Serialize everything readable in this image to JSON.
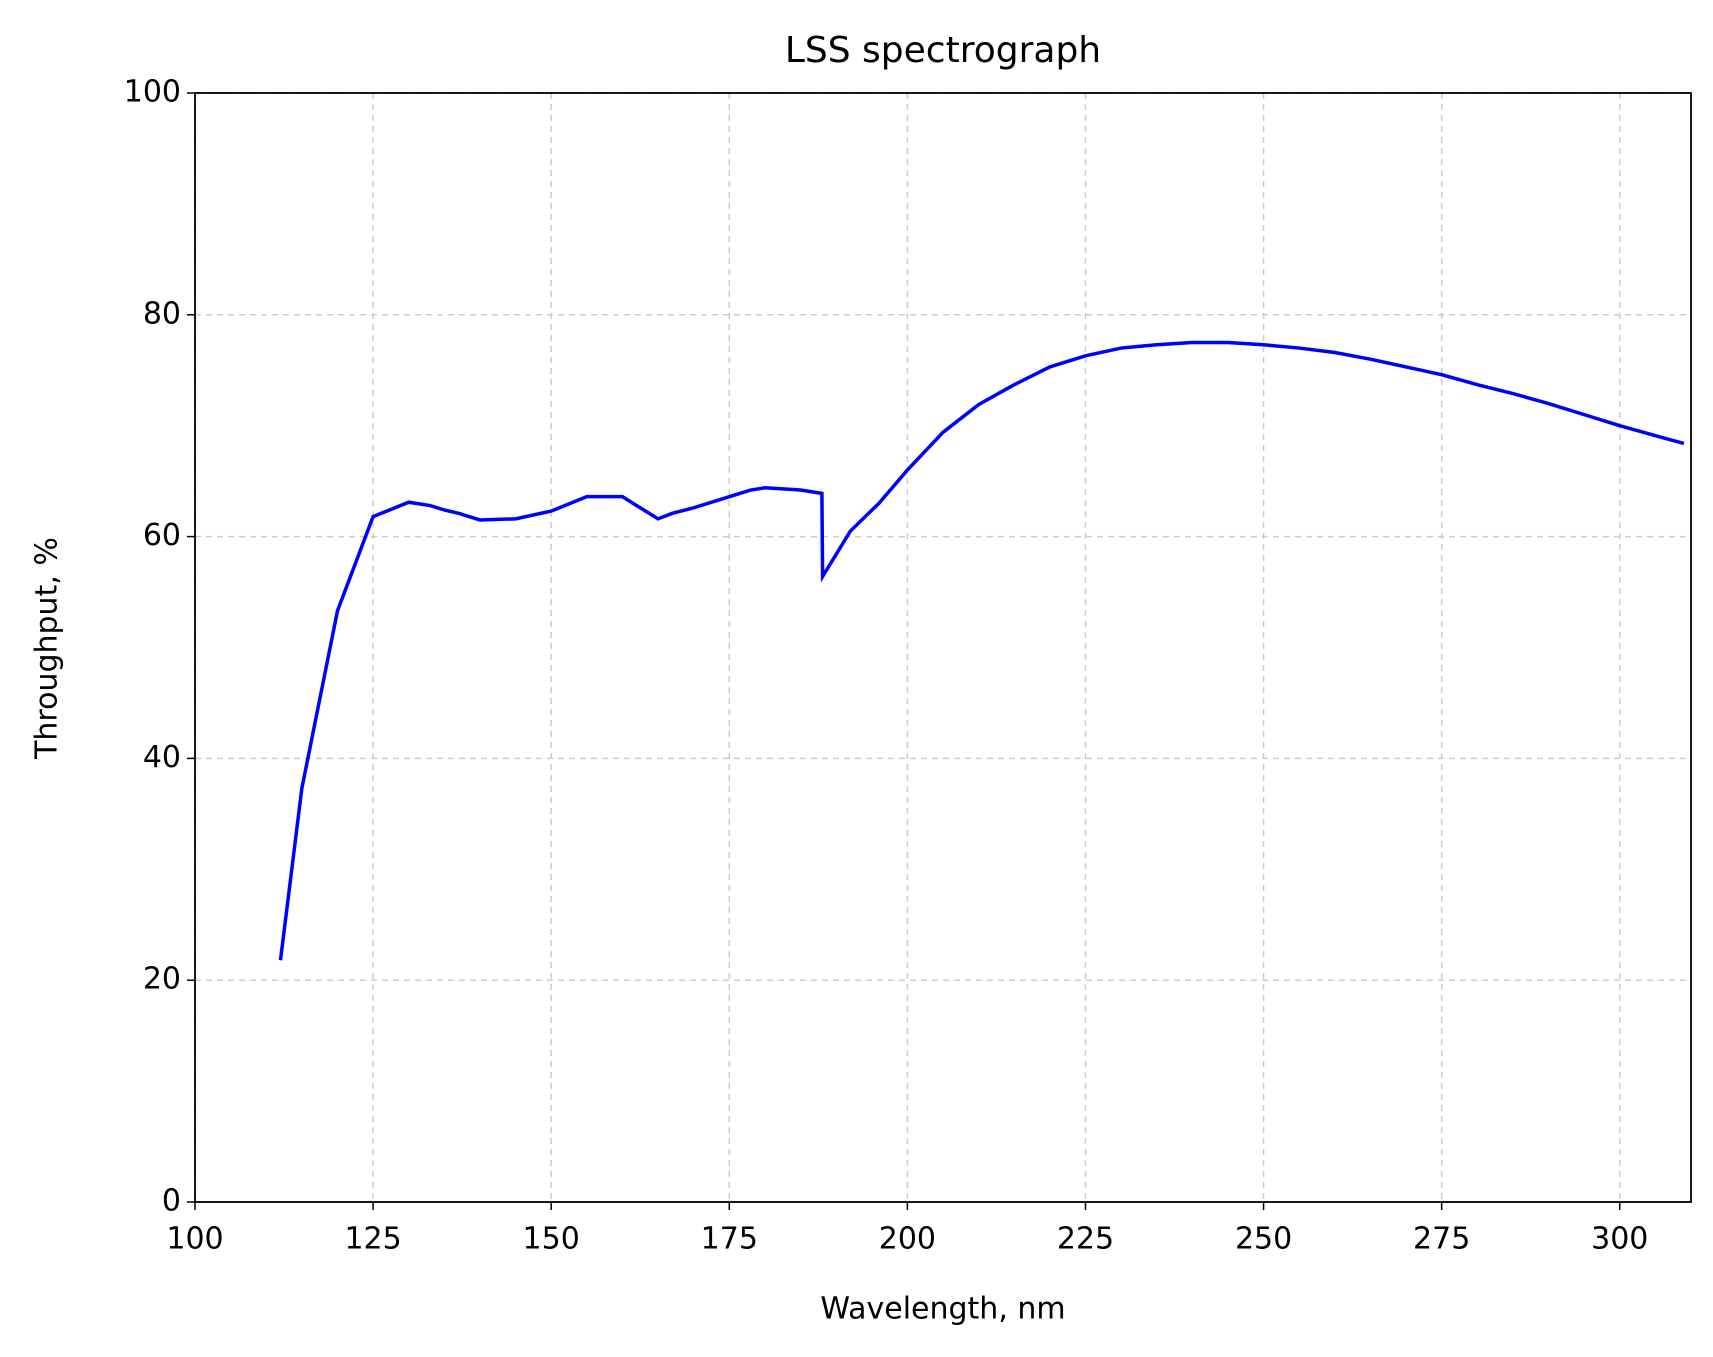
{
  "chart_data": {
    "type": "line",
    "title": "LSS spectrograph",
    "x_label": "Wavelength, nm",
    "y_label": "Throughput, %",
    "x": [
      112,
      115,
      120,
      125,
      130,
      133,
      135,
      137,
      140,
      145,
      150,
      155,
      160,
      165,
      167,
      170,
      175,
      178,
      180,
      185,
      188,
      188.1,
      192,
      196,
      200,
      205,
      210,
      215,
      220,
      225,
      230,
      235,
      240,
      245,
      250,
      255,
      260,
      265,
      270,
      275,
      280,
      285,
      290,
      295,
      300,
      305,
      309
    ],
    "series": [
      {
        "color": "#0000ff",
        "values": [
          21.8,
          37.3,
          53.3,
          61.8,
          63.1,
          62.8,
          62.4,
          62.1,
          61.5,
          61.6,
          62.3,
          63.6,
          63.6,
          61.6,
          62.1,
          62.6,
          63.6,
          64.2,
          64.4,
          64.2,
          63.9,
          56.4,
          60.5,
          63.0,
          66.0,
          69.4,
          71.9,
          73.7,
          75.3,
          76.3,
          77.0,
          77.3,
          77.5,
          77.5,
          77.3,
          77.0,
          76.6,
          76.0,
          75.3,
          74.6,
          73.7,
          72.9,
          72.0,
          71.0,
          70.0,
          69.1,
          68.4
        ]
      }
    ],
    "xlim": [
      100,
      310
    ],
    "ylim": [
      0,
      100
    ],
    "xticks": [
      100,
      125,
      150,
      175,
      200,
      225,
      250,
      275,
      300
    ],
    "yticks": [
      0,
      20,
      40,
      60,
      80,
      100
    ],
    "grid": true
  }
}
